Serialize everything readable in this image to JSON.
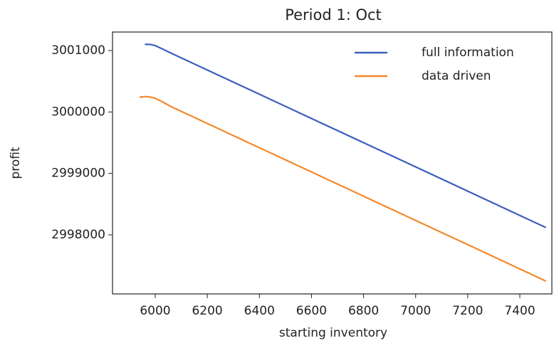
{
  "chart_data": {
    "type": "line",
    "title": "Period 1: Oct",
    "x_label": "starting inventory",
    "y_label": "profit",
    "xlim": [
      5836,
      7523
    ],
    "ylim": [
      2997039,
      3001301
    ],
    "xticks": [
      6000,
      6200,
      6400,
      6600,
      6800,
      7000,
      7200,
      7400
    ],
    "yticks": [
      2998000,
      2999000,
      3000000,
      3001000
    ],
    "grid": false,
    "legend": "upper right",
    "series": [
      {
        "name": "full information",
        "color": "#3a5fbf",
        "x": [
          5960,
          5980,
          6000,
          6020,
          6050,
          6100,
          6200,
          6400,
          6600,
          6800,
          7000,
          7200,
          7400,
          7500
        ],
        "values": [
          3001100,
          3001100,
          3001080,
          3001040,
          3000980,
          3000880,
          3000683,
          3000289,
          2999894,
          2999500,
          2999106,
          2998711,
          2998317,
          2998120
        ]
      },
      {
        "name": "data driven",
        "color": "#f5882a",
        "x": [
          5940,
          5960,
          5980,
          6000,
          6030,
          6060,
          6100,
          6200,
          6400,
          6600,
          6800,
          7000,
          7200,
          7400,
          7500
        ],
        "values": [
          3000240,
          3000250,
          3000245,
          3000220,
          3000160,
          3000090,
          3000010,
          2999813,
          2999418,
          2999024,
          2998629,
          2998235,
          2997840,
          2997445,
          2997248
        ]
      }
    ]
  }
}
